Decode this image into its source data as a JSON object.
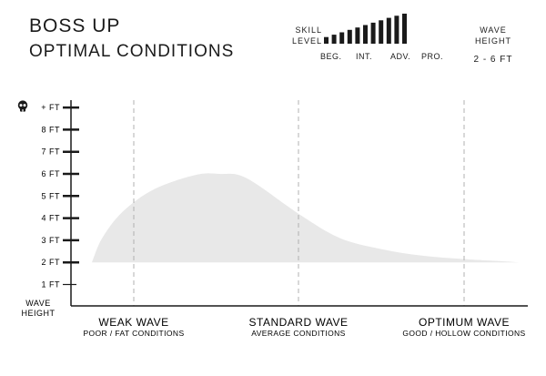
{
  "header": {
    "title": "BOSS UP",
    "subtitle": "OPTIMAL CONDITIONS"
  },
  "skill": {
    "label_line1": "SKILL",
    "label_line2": "LEVEL",
    "levels": [
      "BEG.",
      "INT.",
      "ADV.",
      "PRO."
    ],
    "bar_levels": [
      0.22,
      0.3,
      0.38,
      0.46,
      0.54,
      0.62,
      0.7,
      0.78,
      0.86,
      0.93,
      1.0
    ],
    "bar_color": "#1a1a1a"
  },
  "wave_height": {
    "label_line1": "WAVE",
    "label_line2": "HEIGHT",
    "range": "2 - 6 FT"
  },
  "chart_data": {
    "type": "area",
    "y_axis": {
      "ticks": [
        {
          "value": 1,
          "label": "1 FT"
        },
        {
          "value": 2,
          "label": "2 FT"
        },
        {
          "value": 3,
          "label": "3 FT"
        },
        {
          "value": 4,
          "label": "4 FT"
        },
        {
          "value": 5,
          "label": "5 FT"
        },
        {
          "value": 6,
          "label": "6 FT"
        },
        {
          "value": 7,
          "label": "7 FT"
        },
        {
          "value": 8,
          "label": "8 FT"
        },
        {
          "value": 9,
          "label": "+ FT",
          "icon": "skull-icon"
        }
      ],
      "label_line1": "WAVE",
      "label_line2": "HEIGHT",
      "ylim": [
        0,
        9
      ]
    },
    "x_axis": {
      "categories": [
        {
          "name": "WEAK WAVE",
          "sub": "POOR / FAT CONDITIONS"
        },
        {
          "name": "STANDARD WAVE",
          "sub": "AVERAGE CONDITIONS"
        },
        {
          "name": "OPTIMUM WAVE",
          "sub": "GOOD / HOLLOW CONDITIONS"
        }
      ]
    },
    "upper_curve": [
      {
        "x": 0.0,
        "y": 2.0
      },
      {
        "x": 0.05,
        "y": 3.1
      },
      {
        "x": 0.15,
        "y": 4.3
      },
      {
        "x": 0.3,
        "y": 5.3
      },
      {
        "x": 0.5,
        "y": 5.95
      },
      {
        "x": 0.62,
        "y": 6.0
      },
      {
        "x": 0.75,
        "y": 5.8
      },
      {
        "x": 1.0,
        "y": 4.2
      },
      {
        "x": 1.25,
        "y": 3.1
      },
      {
        "x": 1.5,
        "y": 2.6
      },
      {
        "x": 1.75,
        "y": 2.3
      },
      {
        "x": 2.0,
        "y": 2.15
      },
      {
        "x": 2.25,
        "y": 2.05
      },
      {
        "x": 2.35,
        "y": 2.0
      }
    ],
    "baseline": 2.0,
    "xlim": [
      0.0,
      2.35
    ],
    "fill_color": "#e8e8e8",
    "grid_color": "#b0b0b0",
    "axis_color": "#1a1a1a",
    "grid": "dashed vertical lines at each category"
  }
}
